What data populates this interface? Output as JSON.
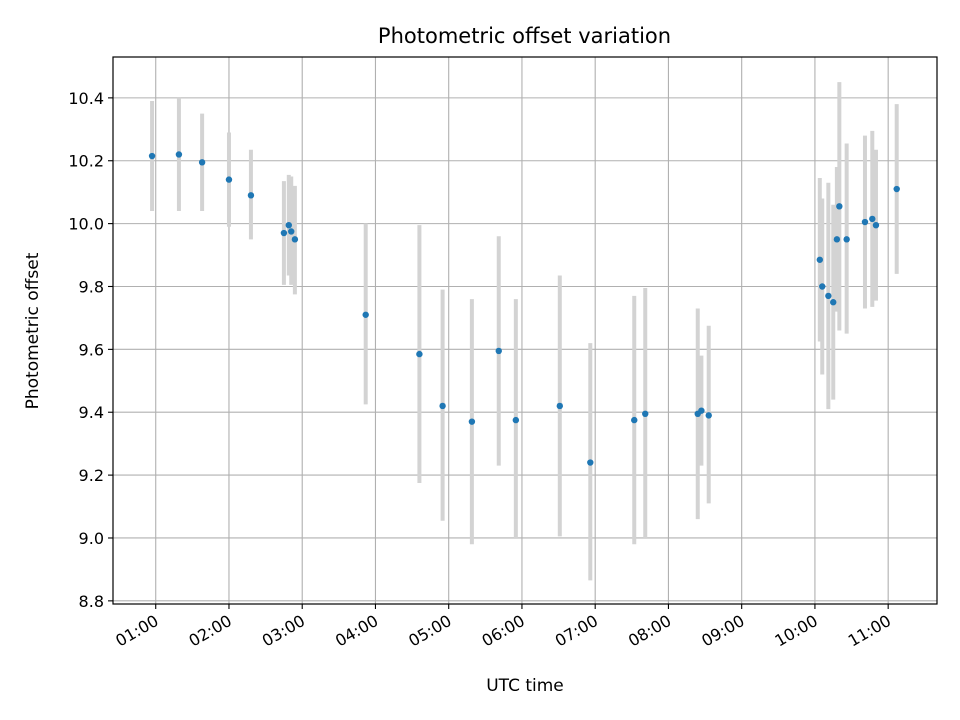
{
  "chart_data": {
    "type": "scatter",
    "title": "Photometric offset variation",
    "xlabel": "UTC time",
    "ylabel": "Photometric offset",
    "xlim": [
      "00:25",
      "11:40"
    ],
    "ylim": [
      8.79,
      10.53
    ],
    "x_ticks": [
      "01:00",
      "02:00",
      "03:00",
      "04:00",
      "05:00",
      "06:00",
      "07:00",
      "08:00",
      "09:00",
      "10:00",
      "11:00"
    ],
    "y_ticks": [
      "8.8",
      "9.0",
      "9.2",
      "9.4",
      "9.6",
      "9.8",
      "10.0",
      "10.2",
      "10.4"
    ],
    "grid": true,
    "colors": {
      "points": "#1f77b4",
      "errorbars": "#d3d3d3",
      "grid": "#b0b0b0"
    },
    "series": [
      {
        "points": [
          {
            "x": "00:57",
            "y": 10.215,
            "ylow": 10.04,
            "yhigh": 10.39
          },
          {
            "x": "01:19",
            "y": 10.22,
            "ylow": 10.04,
            "yhigh": 10.4
          },
          {
            "x": "01:38",
            "y": 10.195,
            "ylow": 10.04,
            "yhigh": 10.35
          },
          {
            "x": "02:00",
            "y": 10.14,
            "ylow": 9.99,
            "yhigh": 10.29
          },
          {
            "x": "02:18",
            "y": 10.09,
            "ylow": 9.95,
            "yhigh": 10.235
          },
          {
            "x": "02:45",
            "y": 9.97,
            "ylow": 9.805,
            "yhigh": 10.135
          },
          {
            "x": "02:49",
            "y": 9.995,
            "ylow": 9.835,
            "yhigh": 10.155
          },
          {
            "x": "02:51",
            "y": 9.975,
            "ylow": 9.805,
            "yhigh": 10.15
          },
          {
            "x": "02:54",
            "y": 9.95,
            "ylow": 9.775,
            "yhigh": 10.12
          },
          {
            "x": "03:52",
            "y": 9.71,
            "ylow": 9.425,
            "yhigh": 10.0
          },
          {
            "x": "04:36",
            "y": 9.585,
            "ylow": 9.175,
            "yhigh": 9.995
          },
          {
            "x": "04:55",
            "y": 9.42,
            "ylow": 9.055,
            "yhigh": 9.79
          },
          {
            "x": "05:19",
            "y": 9.37,
            "ylow": 8.98,
            "yhigh": 9.76
          },
          {
            "x": "05:41",
            "y": 9.595,
            "ylow": 9.23,
            "yhigh": 9.96
          },
          {
            "x": "05:55",
            "y": 9.375,
            "ylow": 9.0,
            "yhigh": 9.76
          },
          {
            "x": "06:31",
            "y": 9.42,
            "ylow": 9.005,
            "yhigh": 9.835
          },
          {
            "x": "06:56",
            "y": 9.24,
            "ylow": 8.865,
            "yhigh": 9.62
          },
          {
            "x": "07:32",
            "y": 9.375,
            "ylow": 8.98,
            "yhigh": 9.77
          },
          {
            "x": "07:41",
            "y": 9.395,
            "ylow": 9.0,
            "yhigh": 9.795
          },
          {
            "x": "08:24",
            "y": 9.395,
            "ylow": 9.06,
            "yhigh": 9.73
          },
          {
            "x": "08:27",
            "y": 9.405,
            "ylow": 9.23,
            "yhigh": 9.58
          },
          {
            "x": "08:33",
            "y": 9.39,
            "ylow": 9.11,
            "yhigh": 9.675
          },
          {
            "x": "10:04",
            "y": 9.885,
            "ylow": 9.625,
            "yhigh": 10.145
          },
          {
            "x": "10:06",
            "y": 9.8,
            "ylow": 9.52,
            "yhigh": 10.08
          },
          {
            "x": "10:11",
            "y": 9.77,
            "ylow": 9.41,
            "yhigh": 10.13
          },
          {
            "x": "10:15",
            "y": 9.75,
            "ylow": 9.44,
            "yhigh": 10.06
          },
          {
            "x": "10:18",
            "y": 9.95,
            "ylow": 9.72,
            "yhigh": 10.18
          },
          {
            "x": "10:20",
            "y": 10.055,
            "ylow": 9.66,
            "yhigh": 10.45
          },
          {
            "x": "10:26",
            "y": 9.95,
            "ylow": 9.65,
            "yhigh": 10.255
          },
          {
            "x": "10:41",
            "y": 10.005,
            "ylow": 9.73,
            "yhigh": 10.28
          },
          {
            "x": "10:47",
            "y": 10.015,
            "ylow": 9.735,
            "yhigh": 10.295
          },
          {
            "x": "10:50",
            "y": 9.995,
            "ylow": 9.755,
            "yhigh": 10.235
          },
          {
            "x": "11:07",
            "y": 10.11,
            "ylow": 9.84,
            "yhigh": 10.38
          }
        ]
      }
    ]
  }
}
